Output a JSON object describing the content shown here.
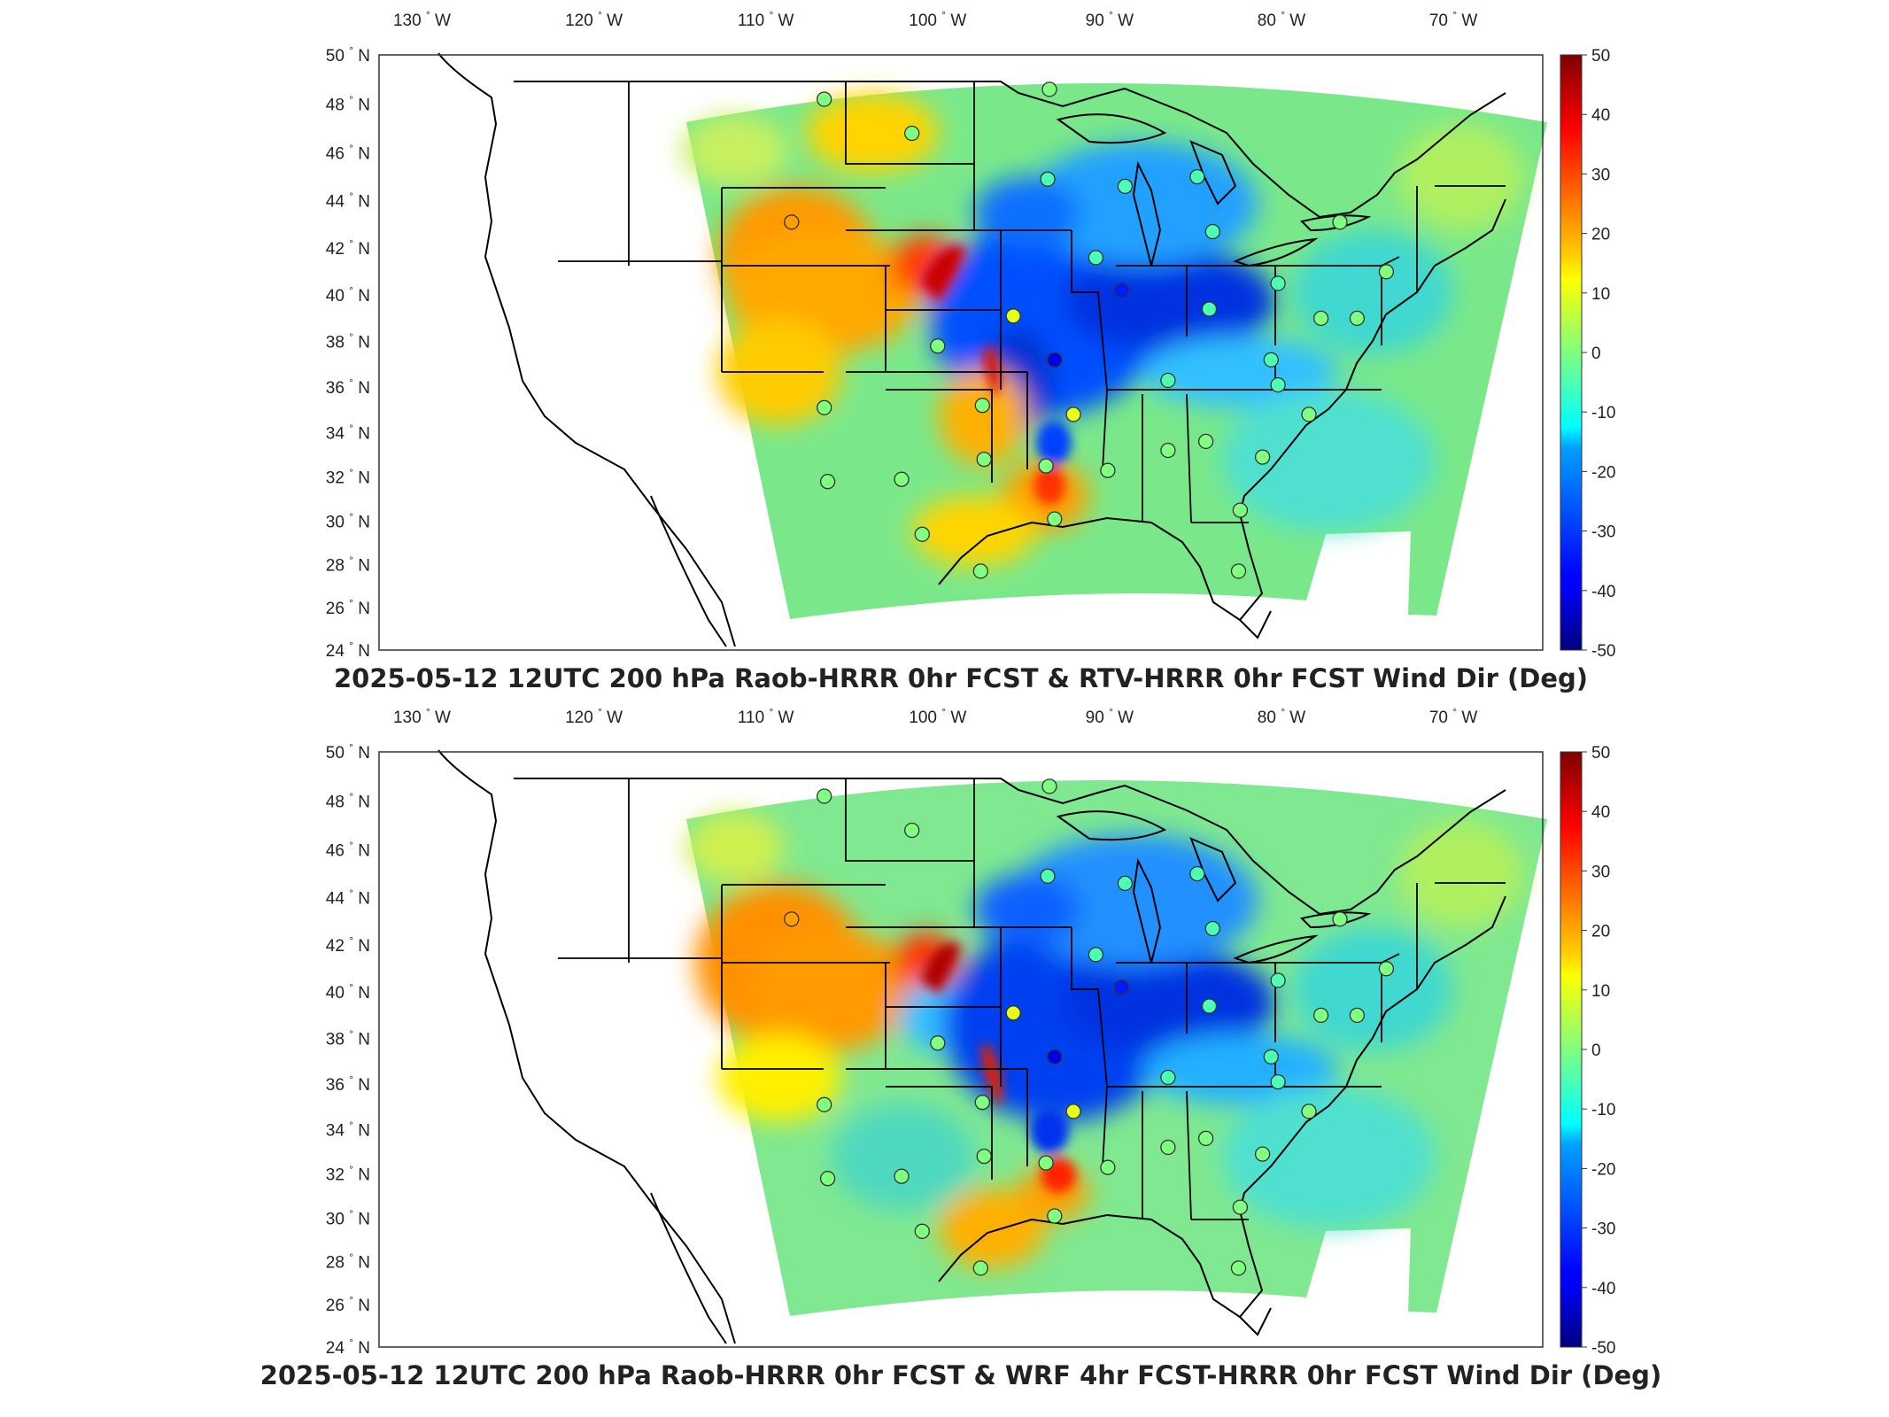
{
  "panels": [
    {
      "title": "2025-05-12 12UTC 200 hPa Raob-HRRR 0hr FCST & RTV-HRRR 0hr FCST Wind Dir (Deg)",
      "stations": [
        {
          "lon": -106.6,
          "lat": 48.2,
          "v": 0
        },
        {
          "lon": -101.5,
          "lat": 46.8,
          "v": 0
        },
        {
          "lon": -93.5,
          "lat": 48.6,
          "v": 0
        },
        {
          "lon": -108.5,
          "lat": 43.1,
          "v": 22
        },
        {
          "lon": -93.6,
          "lat": 44.9,
          "v": -5
        },
        {
          "lon": -89.1,
          "lat": 44.6,
          "v": -5
        },
        {
          "lon": -84.9,
          "lat": 45.0,
          "v": -5
        },
        {
          "lon": -84.0,
          "lat": 42.7,
          "v": -5
        },
        {
          "lon": -90.8,
          "lat": 41.6,
          "v": -5
        },
        {
          "lon": -95.6,
          "lat": 39.1,
          "v": 10
        },
        {
          "lon": -100.0,
          "lat": 37.8,
          "v": 0
        },
        {
          "lon": -93.2,
          "lat": 37.2,
          "v": -40
        },
        {
          "lon": -89.3,
          "lat": 40.2,
          "v": -35
        },
        {
          "lon": -84.2,
          "lat": 39.4,
          "v": -5
        },
        {
          "lon": -80.2,
          "lat": 40.5,
          "v": -5
        },
        {
          "lon": -77.7,
          "lat": 39.0,
          "v": 0
        },
        {
          "lon": -80.6,
          "lat": 37.2,
          "v": -5
        },
        {
          "lon": -86.6,
          "lat": 36.3,
          "v": -5
        },
        {
          "lon": -80.2,
          "lat": 36.1,
          "v": -5
        },
        {
          "lon": -78.4,
          "lat": 34.8,
          "v": 0
        },
        {
          "lon": -92.1,
          "lat": 34.8,
          "v": 10
        },
        {
          "lon": -97.4,
          "lat": 35.2,
          "v": 0
        },
        {
          "lon": -106.6,
          "lat": 35.1,
          "v": 0
        },
        {
          "lon": -97.3,
          "lat": 32.8,
          "v": 0
        },
        {
          "lon": -93.7,
          "lat": 32.5,
          "v": 0
        },
        {
          "lon": -90.1,
          "lat": 32.3,
          "v": 0
        },
        {
          "lon": -86.6,
          "lat": 33.2,
          "v": 0
        },
        {
          "lon": -84.4,
          "lat": 33.6,
          "v": 0
        },
        {
          "lon": -81.1,
          "lat": 32.9,
          "v": 0
        },
        {
          "lon": -106.4,
          "lat": 31.8,
          "v": 0
        },
        {
          "lon": -102.1,
          "lat": 31.9,
          "v": 0
        },
        {
          "lon": -100.9,
          "lat": 29.4,
          "v": 0
        },
        {
          "lon": -93.2,
          "lat": 30.1,
          "v": 0
        },
        {
          "lon": -97.5,
          "lat": 27.7,
          "v": 0
        },
        {
          "lon": -82.4,
          "lat": 30.5,
          "v": 0
        },
        {
          "lon": -82.5,
          "lat": 27.7,
          "v": 0
        },
        {
          "lon": -76.6,
          "lat": 43.1,
          "v": 0
        },
        {
          "lon": -73.9,
          "lat": 41.0,
          "v": 0
        },
        {
          "lon": -75.6,
          "lat": 39.0,
          "v": 0
        }
      ]
    },
    {
      "title": "2025-05-12 12UTC 200 hPa Raob-HRRR 0hr FCST & WRF 4hr FCST-HRRR 0hr FCST Wind Dir (Deg)",
      "stations": [
        {
          "lon": -106.6,
          "lat": 48.2,
          "v": 0
        },
        {
          "lon": -101.5,
          "lat": 46.8,
          "v": 0
        },
        {
          "lon": -93.5,
          "lat": 48.6,
          "v": 0
        },
        {
          "lon": -108.5,
          "lat": 43.1,
          "v": 22
        },
        {
          "lon": -93.6,
          "lat": 44.9,
          "v": -5
        },
        {
          "lon": -89.1,
          "lat": 44.6,
          "v": -5
        },
        {
          "lon": -84.9,
          "lat": 45.0,
          "v": -5
        },
        {
          "lon": -84.0,
          "lat": 42.7,
          "v": -5
        },
        {
          "lon": -90.8,
          "lat": 41.6,
          "v": -5
        },
        {
          "lon": -95.6,
          "lat": 39.1,
          "v": 10
        },
        {
          "lon": -100.0,
          "lat": 37.8,
          "v": 0
        },
        {
          "lon": -93.2,
          "lat": 37.2,
          "v": -40
        },
        {
          "lon": -89.3,
          "lat": 40.2,
          "v": -35
        },
        {
          "lon": -84.2,
          "lat": 39.4,
          "v": -5
        },
        {
          "lon": -80.2,
          "lat": 40.5,
          "v": -5
        },
        {
          "lon": -77.7,
          "lat": 39.0,
          "v": 0
        },
        {
          "lon": -80.6,
          "lat": 37.2,
          "v": -5
        },
        {
          "lon": -86.6,
          "lat": 36.3,
          "v": -5
        },
        {
          "lon": -80.2,
          "lat": 36.1,
          "v": -5
        },
        {
          "lon": -78.4,
          "lat": 34.8,
          "v": 0
        },
        {
          "lon": -92.1,
          "lat": 34.8,
          "v": 10
        },
        {
          "lon": -97.4,
          "lat": 35.2,
          "v": 0
        },
        {
          "lon": -106.6,
          "lat": 35.1,
          "v": 0
        },
        {
          "lon": -97.3,
          "lat": 32.8,
          "v": 0
        },
        {
          "lon": -93.7,
          "lat": 32.5,
          "v": 0
        },
        {
          "lon": -90.1,
          "lat": 32.3,
          "v": 0
        },
        {
          "lon": -86.6,
          "lat": 33.2,
          "v": 0
        },
        {
          "lon": -84.4,
          "lat": 33.6,
          "v": 0
        },
        {
          "lon": -81.1,
          "lat": 32.9,
          "v": 0
        },
        {
          "lon": -106.4,
          "lat": 31.8,
          "v": 0
        },
        {
          "lon": -102.1,
          "lat": 31.9,
          "v": 0
        },
        {
          "lon": -100.9,
          "lat": 29.4,
          "v": 0
        },
        {
          "lon": -93.2,
          "lat": 30.1,
          "v": 0
        },
        {
          "lon": -97.5,
          "lat": 27.7,
          "v": 0
        },
        {
          "lon": -82.4,
          "lat": 30.5,
          "v": 0
        },
        {
          "lon": -82.5,
          "lat": 27.7,
          "v": 0
        },
        {
          "lon": -76.6,
          "lat": 43.1,
          "v": 0
        },
        {
          "lon": -73.9,
          "lat": 41.0,
          "v": 0
        },
        {
          "lon": -75.6,
          "lat": 39.0,
          "v": 0
        }
      ]
    }
  ],
  "lon_ticks": [
    {
      "value": -130,
      "label": "130",
      "hemi": "W"
    },
    {
      "value": -120,
      "label": "120",
      "hemi": "W"
    },
    {
      "value": -110,
      "label": "110",
      "hemi": "W"
    },
    {
      "value": -100,
      "label": "100",
      "hemi": "W"
    },
    {
      "value": -90,
      "label": "90",
      "hemi": "W"
    },
    {
      "value": -80,
      "label": "80",
      "hemi": "W"
    },
    {
      "value": -70,
      "label": "70",
      "hemi": "W"
    }
  ],
  "lat_ticks": [
    {
      "value": 50,
      "label": "50",
      "hemi": "N"
    },
    {
      "value": 48,
      "label": "48",
      "hemi": "N"
    },
    {
      "value": 46,
      "label": "46",
      "hemi": "N"
    },
    {
      "value": 44,
      "label": "44",
      "hemi": "N"
    },
    {
      "value": 42,
      "label": "42",
      "hemi": "N"
    },
    {
      "value": 40,
      "label": "40",
      "hemi": "N"
    },
    {
      "value": 38,
      "label": "38",
      "hemi": "N"
    },
    {
      "value": 36,
      "label": "36",
      "hemi": "N"
    },
    {
      "value": 34,
      "label": "34",
      "hemi": "N"
    },
    {
      "value": 32,
      "label": "32",
      "hemi": "N"
    },
    {
      "value": 30,
      "label": "30",
      "hemi": "N"
    },
    {
      "value": 28,
      "label": "28",
      "hemi": "N"
    },
    {
      "value": 26,
      "label": "26",
      "hemi": "N"
    },
    {
      "value": 24,
      "label": "24",
      "hemi": "N"
    }
  ],
  "colorbar": {
    "min": -50,
    "max": 50,
    "ticks": [
      "50",
      "40",
      "30",
      "20",
      "10",
      "0",
      "-10",
      "-20",
      "-30",
      "-40",
      "-50"
    ],
    "colormap": "jet"
  },
  "degree_symbol": "°"
}
